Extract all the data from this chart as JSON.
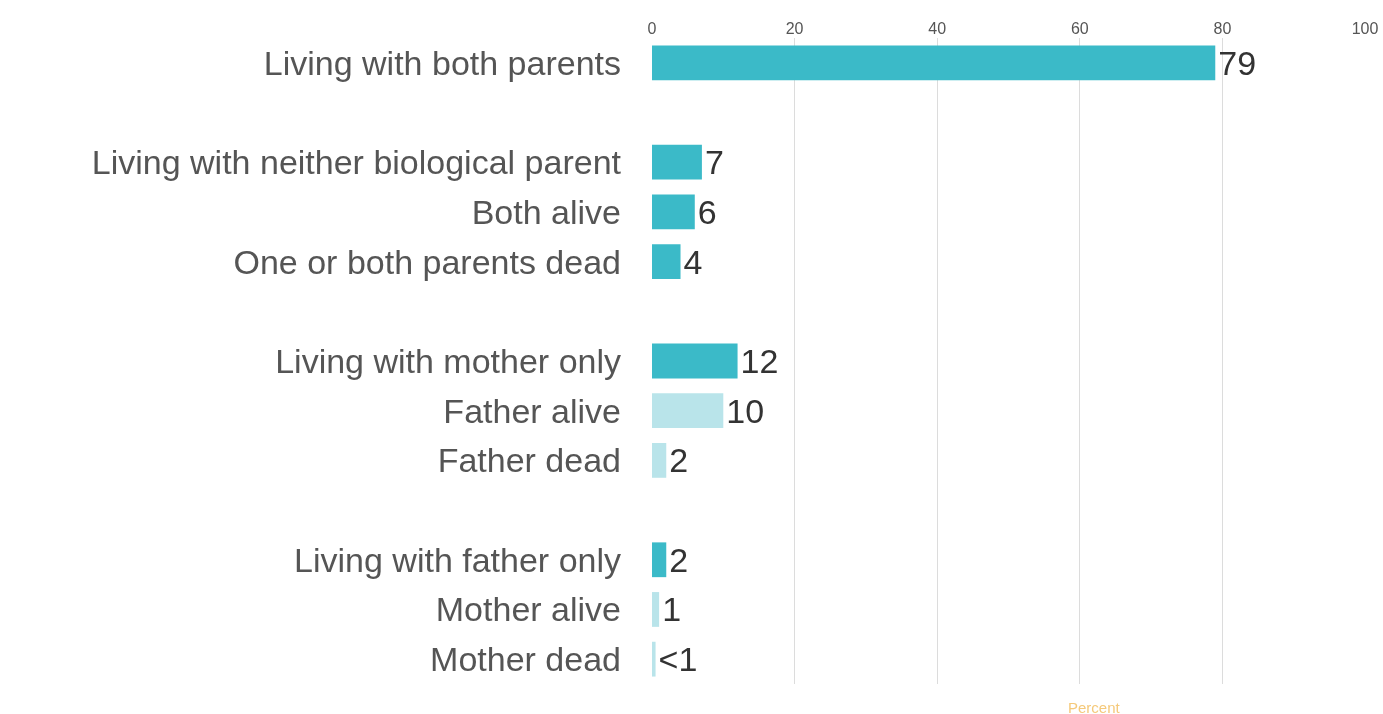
{
  "chart_data": {
    "type": "bar",
    "orientation": "horizontal",
    "xlabel": "Percent",
    "categories": [
      "Living with both parents",
      null,
      "Living with neither biological parent",
      "Both alive",
      "One or both parents dead",
      null,
      "Living with mother only",
      "Father alive",
      "Father dead",
      null,
      "Living with father only",
      "Mother alive",
      "Mother dead"
    ],
    "values": [
      79,
      null,
      7,
      6,
      4,
      null,
      12,
      10,
      2,
      null,
      2,
      1,
      0.5
    ],
    "value_labels": [
      "79",
      null,
      "7",
      "6",
      "4",
      null,
      "12",
      "10",
      "2",
      null,
      "2",
      "1",
      "<1"
    ],
    "colors": [
      "#3bbac8",
      null,
      "#3bbac8",
      "#3bbac8",
      "#3bbac8",
      null,
      "#3bbac8",
      "#b9e4ea",
      "#b9e4ea",
      null,
      "#3bbac8",
      "#b9e4ea",
      "#b9e4ea"
    ],
    "xlim": [
      0,
      100
    ],
    "xticks": [
      0,
      20,
      40,
      60,
      80,
      100
    ],
    "grid": "x",
    "legend": false
  }
}
